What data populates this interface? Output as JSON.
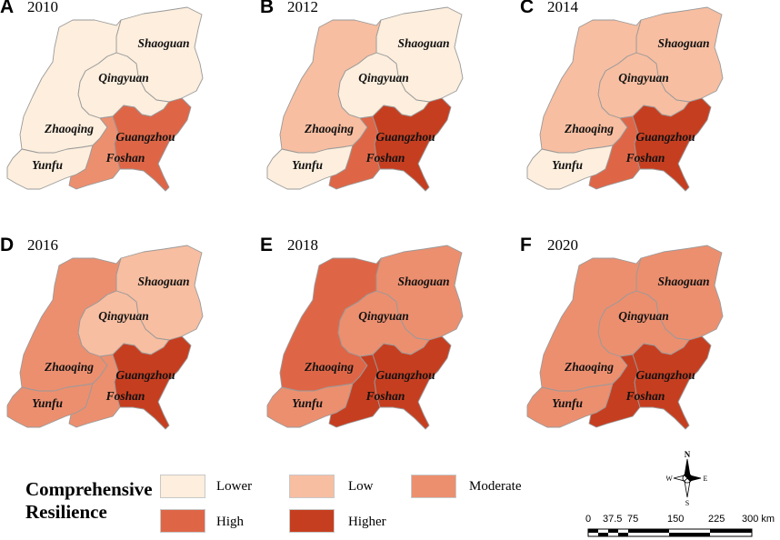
{
  "panels": [
    {
      "letter": "A",
      "year": "2010",
      "classes": {
        "Shaoguan": "lower",
        "Qingyuan": "lower",
        "Zhaoqing": "lower",
        "Yunfu": "lower",
        "Foshan": "moderate",
        "Guangzhou": "high"
      }
    },
    {
      "letter": "B",
      "year": "2012",
      "classes": {
        "Shaoguan": "lower",
        "Qingyuan": "lower",
        "Zhaoqing": "low",
        "Yunfu": "lower",
        "Foshan": "high",
        "Guangzhou": "higher"
      }
    },
    {
      "letter": "C",
      "year": "2014",
      "classes": {
        "Shaoguan": "low",
        "Qingyuan": "low",
        "Zhaoqing": "low",
        "Yunfu": "lower",
        "Foshan": "high",
        "Guangzhou": "higher"
      }
    },
    {
      "letter": "D",
      "year": "2016",
      "classes": {
        "Shaoguan": "low",
        "Qingyuan": "low",
        "Zhaoqing": "moderate",
        "Yunfu": "moderate",
        "Foshan": "moderate",
        "Guangzhou": "higher"
      }
    },
    {
      "letter": "E",
      "year": "2018",
      "classes": {
        "Shaoguan": "moderate",
        "Qingyuan": "moderate",
        "Zhaoqing": "high",
        "Yunfu": "moderate",
        "Foshan": "higher",
        "Guangzhou": "higher"
      }
    },
    {
      "letter": "F",
      "year": "2020",
      "classes": {
        "Shaoguan": "moderate",
        "Qingyuan": "moderate",
        "Zhaoqing": "moderate",
        "Yunfu": "moderate",
        "Foshan": "higher",
        "Guangzhou": "higher"
      }
    }
  ],
  "region_names": [
    "Shaoguan",
    "Qingyuan",
    "Zhaoqing",
    "Yunfu",
    "Foshan",
    "Guangzhou"
  ],
  "legend": {
    "title_line1": "Comprehensive",
    "title_line2": "Resilience",
    "items": [
      {
        "key": "lower",
        "label": "Lower",
        "color": "#fdeedd"
      },
      {
        "key": "low",
        "label": "Low",
        "color": "#f7bea1"
      },
      {
        "key": "moderate",
        "label": "Moderate",
        "color": "#ec8f6f"
      },
      {
        "key": "high",
        "label": "High",
        "color": "#de6647"
      },
      {
        "key": "higher",
        "label": "Higher",
        "color": "#c63e20"
      }
    ]
  },
  "compass": {
    "n": "N",
    "s": "S",
    "e": "E",
    "w": "W"
  },
  "scale": {
    "ticks": [
      "0",
      "37.5",
      "75",
      "150",
      "225",
      "300 km"
    ]
  }
}
